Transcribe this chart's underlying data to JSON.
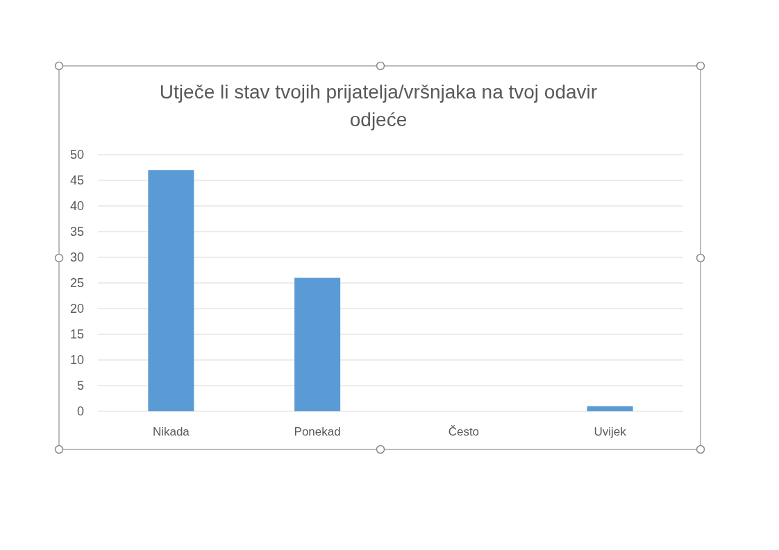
{
  "chart_data": {
    "type": "bar",
    "title": "Utječe li stav tvojih prijatelja/vršnjaka na tvoj odavir odjeće",
    "categories": [
      "Nikada",
      "Ponekad",
      "Često",
      "Uvijek"
    ],
    "values": [
      47,
      26,
      0,
      1
    ],
    "color": "#5b9bd5",
    "ylim": [
      0,
      50
    ],
    "yticks": [
      0,
      5,
      10,
      15,
      20,
      25,
      30,
      35,
      40,
      45,
      50
    ],
    "grid": "y"
  }
}
